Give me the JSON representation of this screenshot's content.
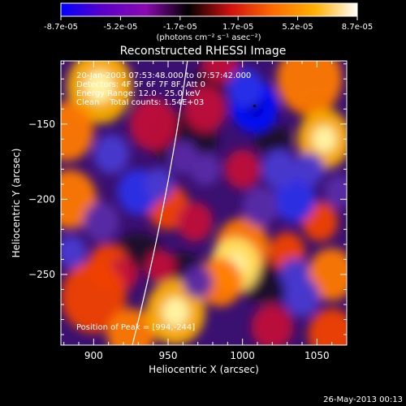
{
  "colorbar": {
    "ticks": [
      "-8.7e-05",
      "-5.2e-05",
      "-1.7e-05",
      "1.7e-05",
      "5.2e-05",
      "8.7e-05"
    ],
    "unit": "(photons cm⁻² s⁻¹ asec⁻²)",
    "range": [
      -8.7e-05,
      8.7e-05
    ],
    "colors": [
      "#0000ff",
      "#5b00c8",
      "#8a0ab0",
      "#000000",
      "#d01010",
      "#ff6a00",
      "#ffb000",
      "#ffffff"
    ]
  },
  "chart_data": {
    "type": "heatmap",
    "title": "Reconstructed RHESSI Image",
    "xlabel": "Heliocentric X (arcsec)",
    "ylabel": "Heliocentric Y (arcsec)",
    "xlim": [
      878,
      1070
    ],
    "ylim": [
      -297,
      -108
    ],
    "x_ticks": [
      900,
      950,
      1000,
      1050
    ],
    "y_ticks": [
      -150,
      -200,
      -250
    ],
    "limb_arc": [
      [
        963,
        -108
      ],
      [
        926,
        -297
      ]
    ],
    "annotations": [
      "20-Jan-2003 07:53:48.000 to 07:57:42.000",
      "Detectors: 4F 5F 6F 7F 8F, Att 0",
      "Energy Range: 12.0 - 25.0 keV",
      "Clean    Total counts: 1.54E+03"
    ],
    "peak_label": "Position of Peak = [994,-244]",
    "blobs": [
      {
        "x": 904,
        "y": -125,
        "v": 0.85,
        "s": 22
      },
      {
        "x": 882,
        "y": -155,
        "v": 0.6,
        "s": 18
      },
      {
        "x": 884,
        "y": -200,
        "v": 0.7,
        "s": 18
      },
      {
        "x": 1045,
        "y": -120,
        "v": 0.6,
        "s": 22
      },
      {
        "x": 1055,
        "y": -160,
        "v": 0.75,
        "s": 18
      },
      {
        "x": 940,
        "y": -150,
        "v": 0.35,
        "s": 16
      },
      {
        "x": 975,
        "y": -140,
        "v": 0.35,
        "s": 14
      },
      {
        "x": 950,
        "y": -205,
        "v": 0.45,
        "s": 14
      },
      {
        "x": 968,
        "y": -215,
        "v": 0.4,
        "s": 12
      },
      {
        "x": 1000,
        "y": -232,
        "v": 0.6,
        "s": 18
      },
      {
        "x": 995,
        "y": -244,
        "v": 1.0,
        "s": 17
      },
      {
        "x": 985,
        "y": -255,
        "v": 0.7,
        "s": 15
      },
      {
        "x": 910,
        "y": -245,
        "v": 0.45,
        "s": 14
      },
      {
        "x": 920,
        "y": -250,
        "v": 0.3,
        "s": 10
      },
      {
        "x": 900,
        "y": -265,
        "v": 0.55,
        "s": 22
      },
      {
        "x": 925,
        "y": -290,
        "v": 0.7,
        "s": 16
      },
      {
        "x": 955,
        "y": -275,
        "v": 0.85,
        "s": 20
      },
      {
        "x": 945,
        "y": -245,
        "v": 0.35,
        "s": 10
      },
      {
        "x": 1030,
        "y": -235,
        "v": 0.45,
        "s": 12
      },
      {
        "x": 1052,
        "y": -215,
        "v": 0.5,
        "s": 12
      },
      {
        "x": 1060,
        "y": -250,
        "v": 0.6,
        "s": 16
      },
      {
        "x": 1060,
        "y": -290,
        "v": 0.45,
        "s": 16
      },
      {
        "x": 1020,
        "y": -285,
        "v": 0.4,
        "s": 14
      },
      {
        "x": 1000,
        "y": -180,
        "v": 0.35,
        "s": 12
      },
      {
        "x": 985,
        "y": -110,
        "v": 0.3,
        "s": 12
      },
      {
        "x": 1008,
        "y": -138,
        "v": -1.0,
        "s": 16
      },
      {
        "x": 1002,
        "y": -126,
        "v": -0.6,
        "s": 12
      },
      {
        "x": 930,
        "y": -195,
        "v": -0.65,
        "s": 14
      },
      {
        "x": 944,
        "y": -190,
        "v": -0.5,
        "s": 10
      },
      {
        "x": 912,
        "y": -170,
        "v": -0.45,
        "s": 12
      },
      {
        "x": 1035,
        "y": -200,
        "v": -0.6,
        "s": 14
      },
      {
        "x": 1025,
        "y": -180,
        "v": -0.5,
        "s": 12
      },
      {
        "x": 1045,
        "y": -180,
        "v": -0.45,
        "s": 10
      },
      {
        "x": 1040,
        "y": -265,
        "v": -0.55,
        "s": 12
      },
      {
        "x": 1035,
        "y": -250,
        "v": -0.5,
        "s": 10
      },
      {
        "x": 1012,
        "y": -205,
        "v": -0.4,
        "s": 12
      },
      {
        "x": 885,
        "y": -235,
        "v": -0.5,
        "s": 10
      },
      {
        "x": 905,
        "y": -215,
        "v": -0.35,
        "s": 12
      },
      {
        "x": 960,
        "y": -172,
        "v": -0.35,
        "s": 10
      },
      {
        "x": 970,
        "y": -255,
        "v": -0.3,
        "s": 10
      },
      {
        "x": 975,
        "y": -180,
        "v": -0.3,
        "s": 10
      },
      {
        "x": 1065,
        "y": -195,
        "v": -0.3,
        "s": 10
      }
    ]
  },
  "footer": {
    "timestamp": "26-May-2013 00:13"
  }
}
